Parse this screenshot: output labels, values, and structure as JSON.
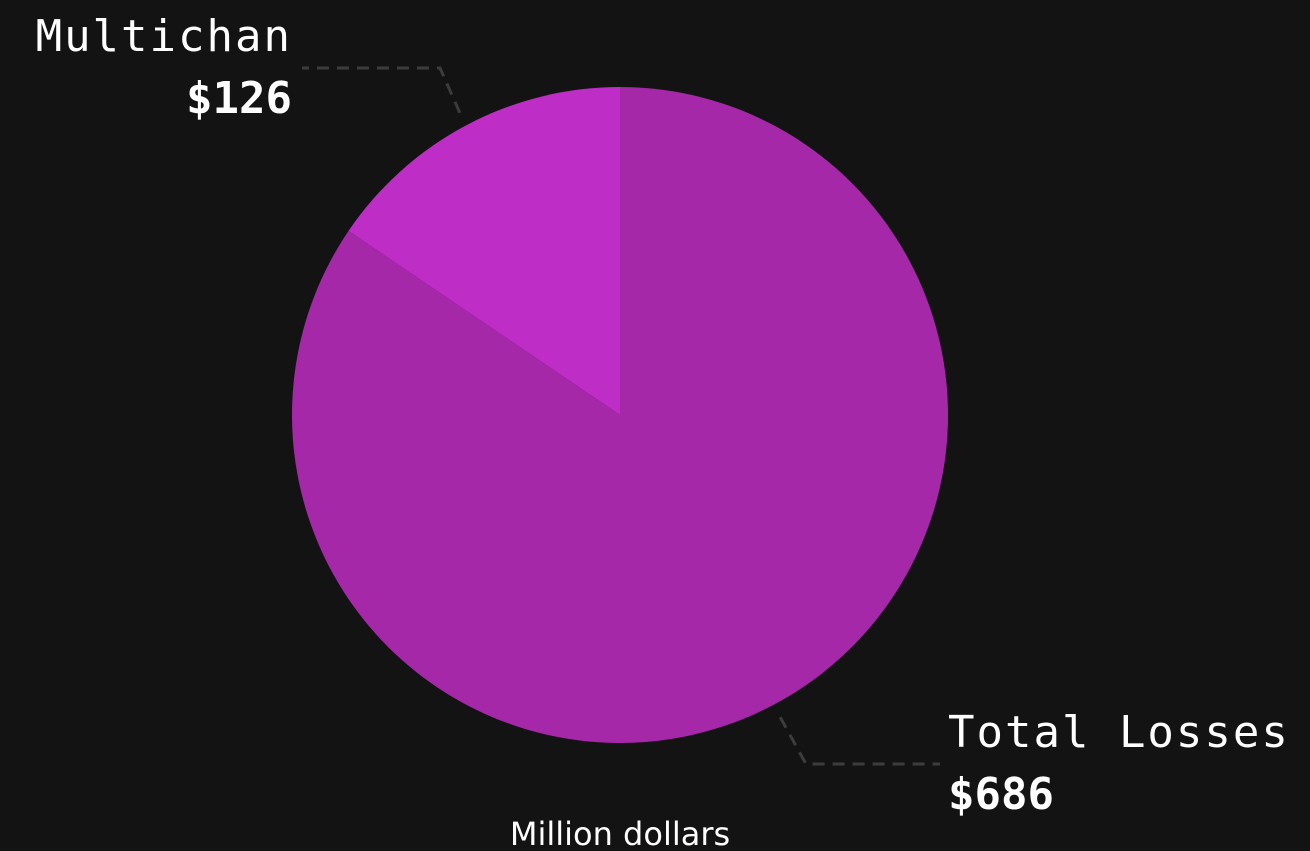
{
  "chart_data": {
    "type": "pie",
    "slices": [
      {
        "label": "Total Losses",
        "value": 686,
        "display_value": "$686",
        "color": "#a428a8"
      },
      {
        "label": "Multichan",
        "value": 126,
        "display_value": "$126",
        "color": "#be2dc5"
      }
    ],
    "unit_caption": "Million dollars",
    "background": "#131313",
    "leader_color": "#3c3c3c"
  }
}
